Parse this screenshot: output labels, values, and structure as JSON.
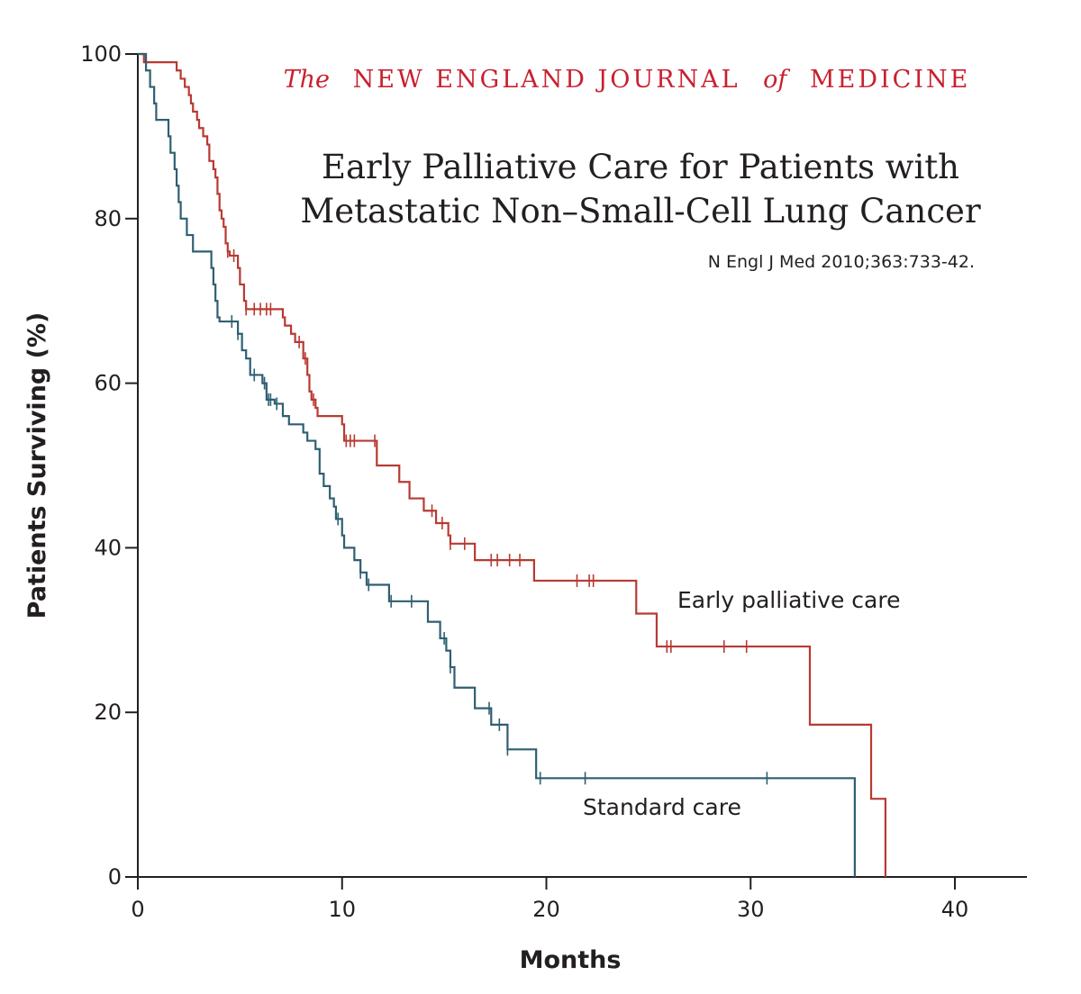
{
  "header": {
    "journal_the": "The",
    "journal_name_1": "NEW ENGLAND JOURNAL",
    "journal_of": "of",
    "journal_name_2": "MEDICINE",
    "title_line_1": "Early Palliative Care for Patients with",
    "title_line_2": "Metastatic Non–Small-Cell Lung Cancer",
    "citation": "N Engl J Med 2010;363:733-42."
  },
  "colors": {
    "early": "#b83a32",
    "standard": "#2f5f72",
    "journal": "#c8202f"
  },
  "chart_data": {
    "type": "line",
    "subtype": "kaplan-meier-step",
    "xlabel": "Months",
    "ylabel": "Patients Surviving (%)",
    "xlim": [
      0,
      43.5
    ],
    "ylim": [
      0,
      100
    ],
    "xticks": [
      0,
      10,
      20,
      30,
      40
    ],
    "yticks": [
      0,
      20,
      40,
      60,
      80,
      100
    ],
    "grid": false,
    "legend": "inline labels",
    "series": [
      {
        "name": "Early palliative care",
        "color_key": "early",
        "steps": [
          [
            0,
            100
          ],
          [
            0.3,
            99
          ],
          [
            1.8,
            99
          ],
          [
            1.9,
            98
          ],
          [
            2.1,
            97
          ],
          [
            2.3,
            96
          ],
          [
            2.5,
            95
          ],
          [
            2.6,
            94
          ],
          [
            2.7,
            93
          ],
          [
            2.9,
            92
          ],
          [
            3.0,
            91
          ],
          [
            3.2,
            90
          ],
          [
            3.4,
            89
          ],
          [
            3.5,
            87
          ],
          [
            3.7,
            86
          ],
          [
            3.8,
            85
          ],
          [
            3.9,
            83
          ],
          [
            4.0,
            81
          ],
          [
            4.1,
            80
          ],
          [
            4.2,
            79
          ],
          [
            4.3,
            77
          ],
          [
            4.4,
            76
          ],
          [
            4.5,
            75.5
          ],
          [
            4.9,
            74
          ],
          [
            5.0,
            72
          ],
          [
            5.2,
            70
          ],
          [
            5.3,
            69
          ],
          [
            7.1,
            68
          ],
          [
            7.2,
            67
          ],
          [
            7.5,
            66
          ],
          [
            7.7,
            65
          ],
          [
            8.1,
            63
          ],
          [
            8.3,
            61
          ],
          [
            8.4,
            59
          ],
          [
            8.5,
            58
          ],
          [
            8.7,
            57
          ],
          [
            8.8,
            56
          ],
          [
            10.0,
            55
          ],
          [
            10.1,
            53
          ],
          [
            11.7,
            50
          ],
          [
            12.8,
            48
          ],
          [
            13.3,
            46
          ],
          [
            14.0,
            44.5
          ],
          [
            14.6,
            43
          ],
          [
            15.2,
            41.5
          ],
          [
            15.3,
            40.5
          ],
          [
            16.5,
            38.5
          ],
          [
            19.4,
            36
          ],
          [
            24.4,
            32
          ],
          [
            25.4,
            28
          ],
          [
            32.9,
            18.5
          ],
          [
            35.9,
            9.5
          ],
          [
            36.6,
            0
          ]
        ],
        "censored": [
          4.4,
          4.7,
          5.3,
          5.7,
          6.0,
          6.3,
          6.5,
          7.9,
          8.2,
          8.6,
          10.2,
          10.4,
          10.6,
          11.6,
          14.4,
          14.9,
          15.3,
          16.0,
          17.3,
          17.6,
          18.2,
          18.7,
          21.5,
          22.1,
          22.3,
          25.9,
          26.1,
          28.7,
          29.8
        ],
        "label": "Early palliative care"
      },
      {
        "name": "Standard care",
        "color_key": "standard",
        "steps": [
          [
            0,
            100
          ],
          [
            0.4,
            98
          ],
          [
            0.6,
            96
          ],
          [
            0.8,
            94
          ],
          [
            0.9,
            92
          ],
          [
            1.5,
            90
          ],
          [
            1.6,
            88
          ],
          [
            1.8,
            86
          ],
          [
            1.9,
            84
          ],
          [
            2.0,
            82
          ],
          [
            2.1,
            80
          ],
          [
            2.4,
            78
          ],
          [
            2.7,
            76
          ],
          [
            3.6,
            74
          ],
          [
            3.7,
            72
          ],
          [
            3.8,
            70
          ],
          [
            3.9,
            68
          ],
          [
            4.0,
            67.5
          ],
          [
            4.9,
            66
          ],
          [
            5.1,
            64
          ],
          [
            5.3,
            63
          ],
          [
            5.5,
            61
          ],
          [
            6.1,
            60
          ],
          [
            6.3,
            58
          ],
          [
            6.7,
            57.5
          ],
          [
            7.1,
            56
          ],
          [
            7.4,
            55
          ],
          [
            8.1,
            54
          ],
          [
            8.3,
            53
          ],
          [
            8.7,
            52
          ],
          [
            8.9,
            49
          ],
          [
            9.1,
            47.5
          ],
          [
            9.4,
            46
          ],
          [
            9.6,
            45
          ],
          [
            9.7,
            43.5
          ],
          [
            10.0,
            41.5
          ],
          [
            10.1,
            40
          ],
          [
            10.6,
            38.5
          ],
          [
            10.9,
            37
          ],
          [
            11.2,
            35.5
          ],
          [
            12.3,
            33.5
          ],
          [
            14.2,
            31
          ],
          [
            14.8,
            29
          ],
          [
            15.1,
            27.5
          ],
          [
            15.3,
            25.5
          ],
          [
            15.5,
            23
          ],
          [
            16.5,
            20.5
          ],
          [
            17.3,
            18.5
          ],
          [
            18.1,
            15.5
          ],
          [
            19.5,
            12
          ],
          [
            35.1,
            0
          ]
        ],
        "censored": [
          4.6,
          4.9,
          5.7,
          6.2,
          6.4,
          6.5,
          6.8,
          9.8,
          10.9,
          11.3,
          12.4,
          13.4,
          15.0,
          15.3,
          17.2,
          17.7,
          18.1,
          19.7,
          21.9,
          30.8
        ],
        "label": "Standard care"
      }
    ]
  }
}
